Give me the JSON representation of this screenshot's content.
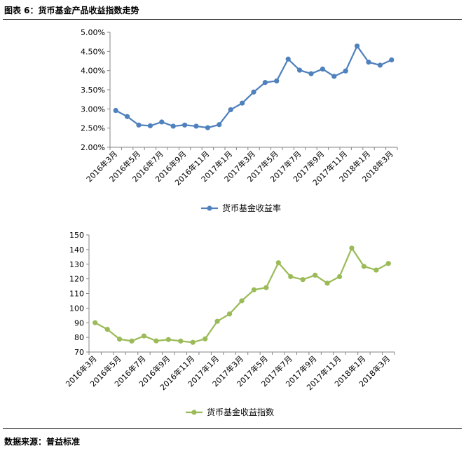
{
  "header": {
    "title": "图表 6：货币基金产品收益指数走势"
  },
  "footer": {
    "source": "数据来源：普益标准"
  },
  "chart_data": [
    {
      "type": "line",
      "categories": [
        "2016年3月",
        "2016年4月",
        "2016年5月",
        "2016年6月",
        "2016年7月",
        "2016年8月",
        "2016年9月",
        "2016年10月",
        "2016年11月",
        "2016年12月",
        "2017年1月",
        "2017年2月",
        "2017年3月",
        "2017年4月",
        "2017年5月",
        "2017年6月",
        "2017年7月",
        "2017年8月",
        "2017年9月",
        "2017年10月",
        "2017年11月",
        "2017年12月",
        "2018年1月",
        "2018年2月",
        "2018年3月"
      ],
      "x_tick_labels": [
        "2016年3月",
        "2016年5月",
        "2016年7月",
        "2016年9月",
        "2016年11月",
        "2017年1月",
        "2017年3月",
        "2017年5月",
        "2017年7月",
        "2017年9月",
        "2017年11月",
        "2018年1月",
        "2018年3月"
      ],
      "series": [
        {
          "name": "货币基金收益率",
          "color": "#4F81BD",
          "values": [
            2.96,
            2.8,
            2.58,
            2.56,
            2.66,
            2.55,
            2.58,
            2.55,
            2.51,
            2.59,
            2.98,
            3.15,
            3.44,
            3.69,
            3.73,
            4.3,
            4.01,
            3.92,
            4.04,
            3.85,
            3.99,
            4.64,
            4.22,
            4.14,
            4.28
          ]
        }
      ],
      "y_ticks": [
        "2.00%",
        "2.50%",
        "3.00%",
        "3.50%",
        "4.00%",
        "4.50%",
        "5.00%"
      ],
      "ylim": [
        2.0,
        5.0
      ],
      "legend": "bottom",
      "grid": false
    },
    {
      "type": "line",
      "categories": [
        "2016年3月",
        "2016年4月",
        "2016年5月",
        "2016年6月",
        "2016年7月",
        "2016年8月",
        "2016年9月",
        "2016年10月",
        "2016年11月",
        "2016年12月",
        "2017年1月",
        "2017年2月",
        "2017年3月",
        "2017年4月",
        "2017年5月",
        "2017年6月",
        "2017年7月",
        "2017年8月",
        "2017年9月",
        "2017年10月",
        "2017年11月",
        "2017年12月",
        "2018年1月",
        "2018年2月",
        "2018年3月"
      ],
      "x_tick_labels": [
        "2016年3月",
        "2016年5月",
        "2016年7月",
        "2016年9月",
        "2016年11月",
        "2017年1月",
        "2017年3月",
        "2017年5月",
        "2017年7月",
        "2017年9月",
        "2017年11月",
        "2018年1月",
        "2018年3月"
      ],
      "series": [
        {
          "name": "货币基金收益指数",
          "color": "#9BBB59",
          "values": [
            90.0,
            85.5,
            78.8,
            77.5,
            81.0,
            77.6,
            78.5,
            77.5,
            76.6,
            79.0,
            91.0,
            96.0,
            105.0,
            112.5,
            114.0,
            131.0,
            121.5,
            119.5,
            122.5,
            117.0,
            121.5,
            141.0,
            128.5,
            126.0,
            130.5
          ]
        }
      ],
      "y_ticks": [
        "70",
        "80",
        "90",
        "100",
        "110",
        "120",
        "130",
        "140",
        "150"
      ],
      "ylim": [
        70,
        150
      ],
      "legend": "bottom",
      "grid": false
    }
  ]
}
